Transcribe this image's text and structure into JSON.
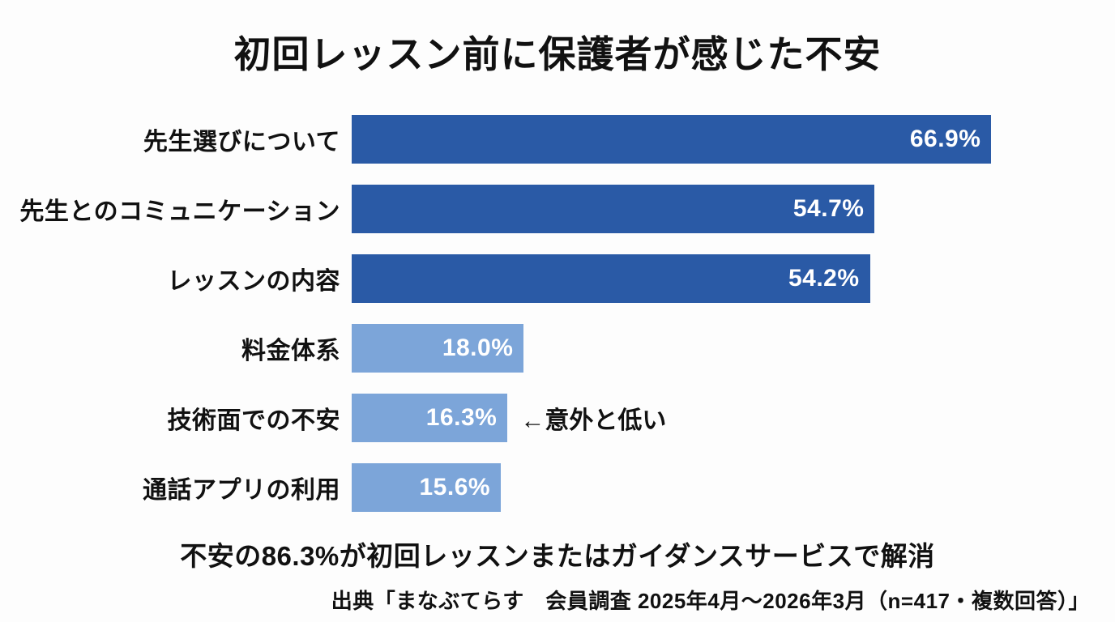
{
  "title": "初回レッスン前に保護者が感じた不安",
  "chart_data": {
    "type": "bar",
    "orientation": "horizontal",
    "title": "初回レッスン前に保護者が感じた不安",
    "categories": [
      "先生選びについて",
      "先生とのコミュニケーション",
      "レッスンの内容",
      "料金体系",
      "技術面での不安",
      "通話アプリの利用"
    ],
    "values": [
      66.9,
      54.7,
      54.2,
      18.0,
      16.3,
      15.6
    ],
    "value_labels": [
      "66.9%",
      "54.7%",
      "54.2%",
      "18.0%",
      "16.3%",
      "15.6%"
    ],
    "bar_colors": [
      "#2A5AA6",
      "#2A5AA6",
      "#2A5AA6",
      "#7CA5D9",
      "#7CA5D9",
      "#7CA5D9"
    ],
    "xlim": [
      0,
      70
    ],
    "grid": false,
    "legend": false,
    "axes_visible": false,
    "value_label_position": "inside-end",
    "annotations": [
      {
        "target_category": "技術面での不安",
        "text": "←意外と低い"
      }
    ]
  },
  "footer": {
    "summary": "不安の86.3%が初回レッスンまたはガイダンスサービスで解消",
    "source": "出典「まなぶてらす　会員調査 2025年4月〜2026年3月（n=417・複数回答）」"
  },
  "colors": {
    "dark_blue": "#2A5AA6",
    "light_blue": "#7CA5D9",
    "text": "#111111",
    "bar_value_text": "#FFFFFF",
    "background": "#FDFDFD"
  }
}
